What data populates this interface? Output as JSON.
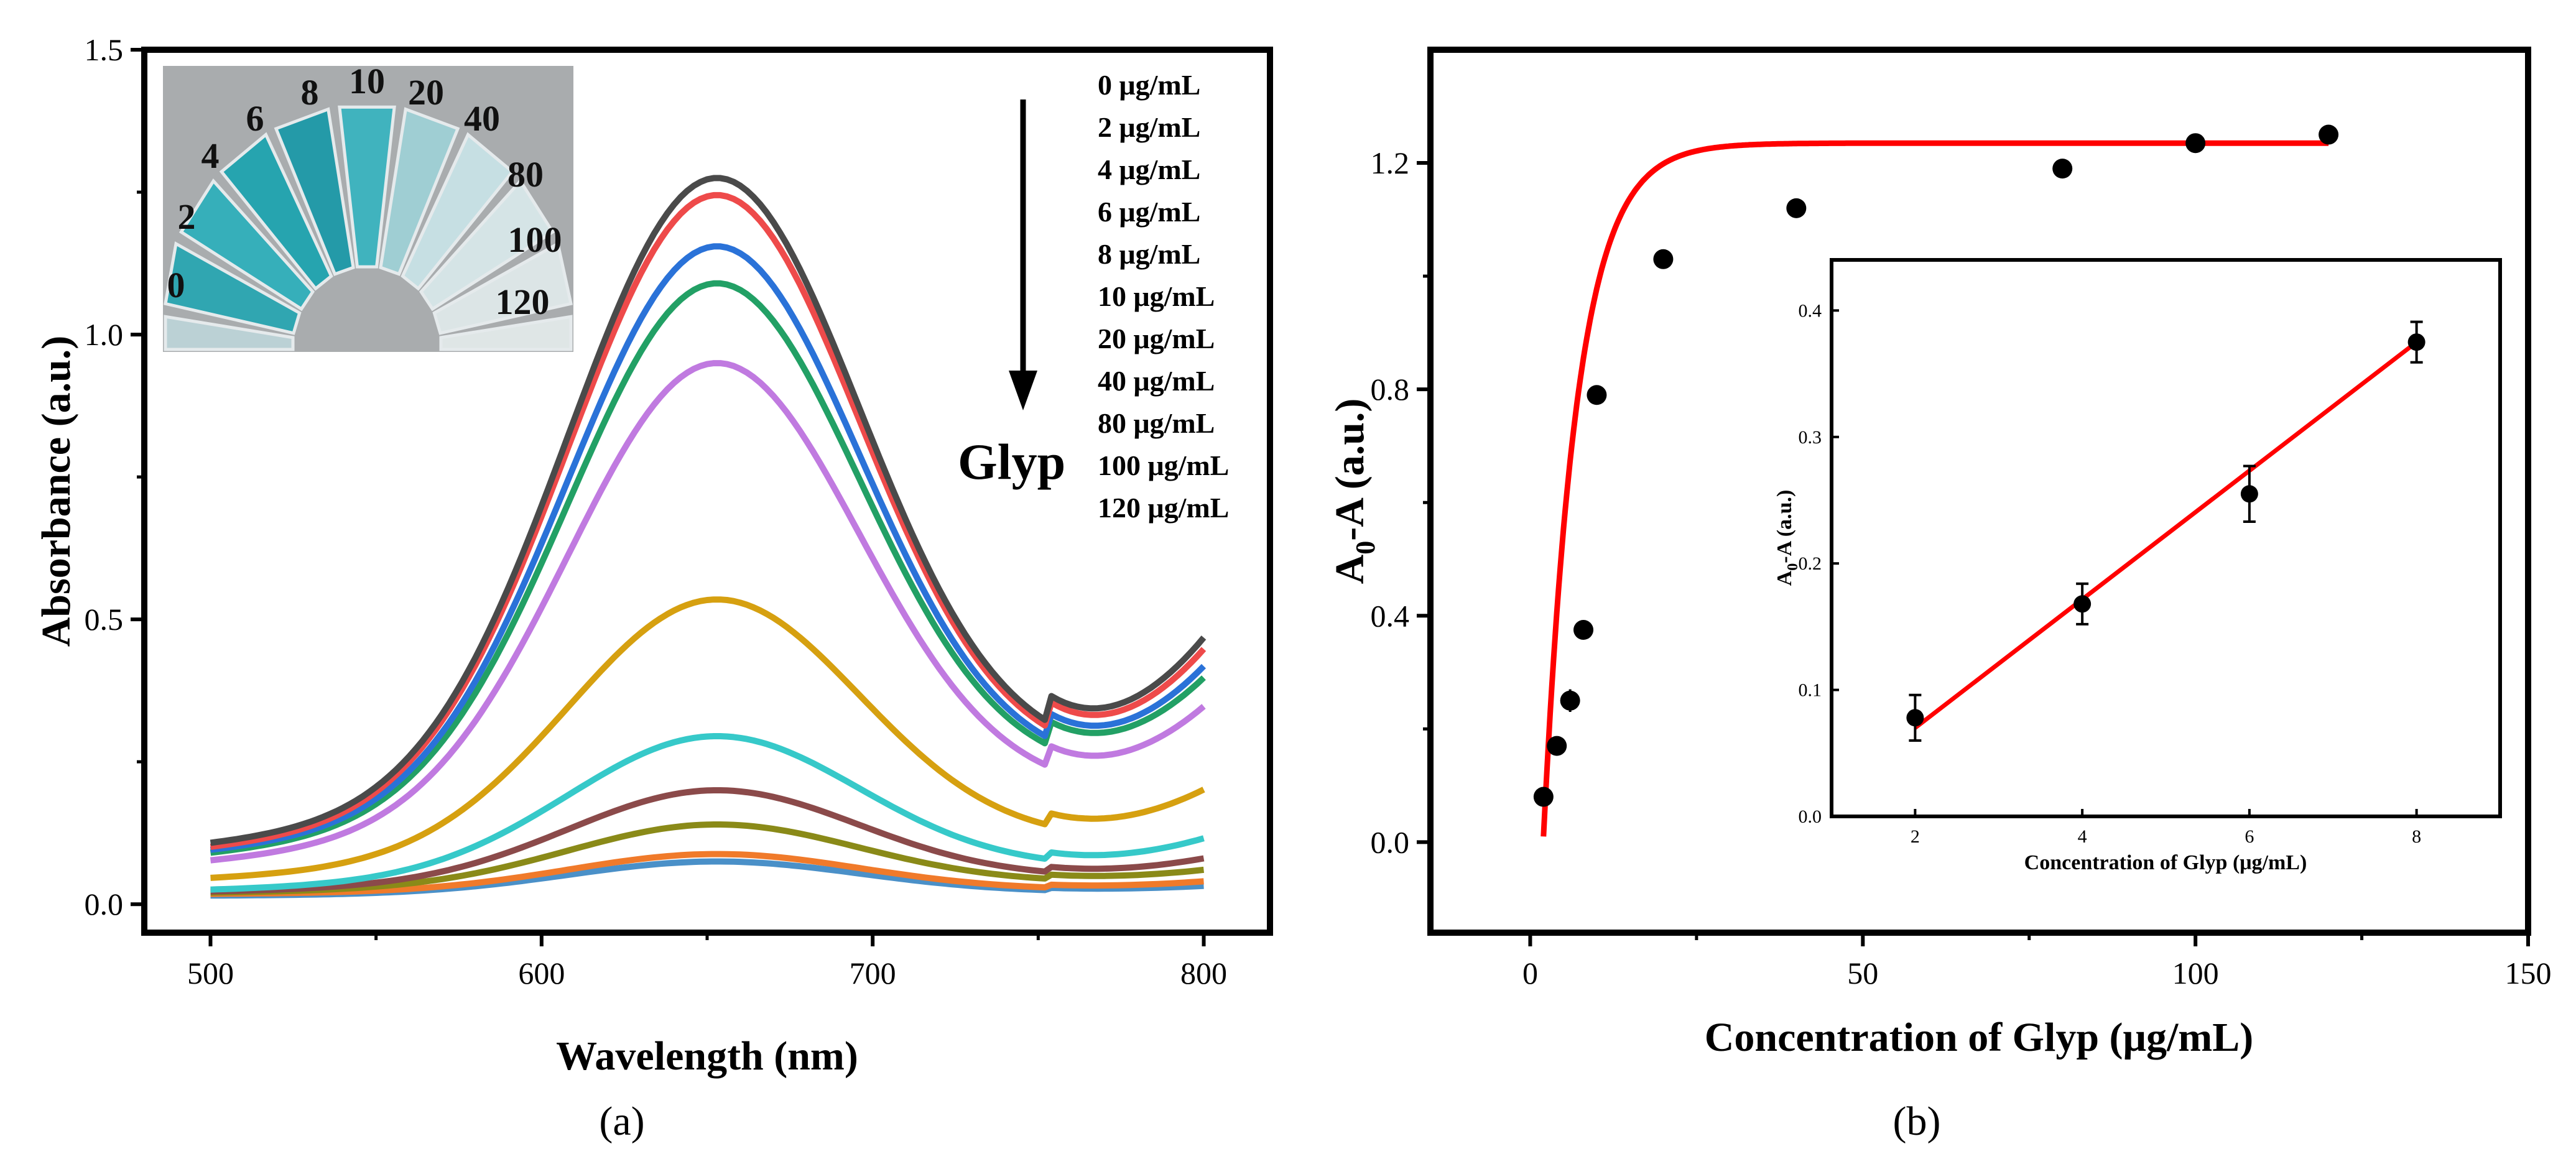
{
  "chart_data": [
    {
      "type": "line",
      "panel_label": "(a)",
      "xlabel": "Wavelength (nm)",
      "ylabel": "Absorbance (a.u.)",
      "xlim": [
        480,
        820
      ],
      "ylim": [
        -0.05,
        1.5
      ],
      "x_ticks": [
        500,
        600,
        700,
        800
      ],
      "y_ticks": [
        0.0,
        0.5,
        1.0,
        1.5
      ],
      "x_tick_labels": [
        "500",
        "600",
        "700",
        "800"
      ],
      "y_tick_labels": [
        "0.0",
        "0.5",
        "1.0",
        "1.5"
      ],
      "arrow_label": "Glyp",
      "series": [
        {
          "name": "0 μg/mL",
          "color": "#4a4a4a",
          "a500": 0.105,
          "peak": 1.275,
          "min750": 0.295,
          "a800": 0.465
        },
        {
          "name": "2 μg/mL",
          "color": "#ee4a4a",
          "a500": 0.098,
          "peak": 1.245,
          "min750": 0.285,
          "a800": 0.445
        },
        {
          "name": "4 μg/mL",
          "color": "#2a72d8",
          "a500": 0.093,
          "peak": 1.155,
          "min750": 0.27,
          "a800": 0.415
        },
        {
          "name": "6 μg/mL",
          "color": "#22a065",
          "a500": 0.088,
          "peak": 1.09,
          "min750": 0.26,
          "a800": 0.395
        },
        {
          "name": "8 μg/mL",
          "color": "#c07ae0",
          "a500": 0.075,
          "peak": 0.95,
          "min750": 0.225,
          "a800": 0.345
        },
        {
          "name": "10 μg/mL",
          "color": "#d6a010",
          "a500": 0.045,
          "peak": 0.535,
          "min750": 0.13,
          "a800": 0.2
        },
        {
          "name": "20 μg/mL",
          "color": "#36c9c9",
          "a500": 0.025,
          "peak": 0.295,
          "min750": 0.075,
          "a800": 0.115
        },
        {
          "name": "40 μg/mL",
          "color": "#8b4a4a",
          "a500": 0.022,
          "peak": 0.2,
          "min750": 0.055,
          "a800": 0.08
        },
        {
          "name": "80 μg/mL",
          "color": "#8a8a18",
          "a500": 0.02,
          "peak": 0.14,
          "min750": 0.045,
          "a800": 0.06
        },
        {
          "name": "100 μg/mL",
          "color": "#f07a2a",
          "a500": 0.018,
          "peak": 0.088,
          "min750": 0.03,
          "a800": 0.04
        },
        {
          "name": "120 μg/mL",
          "color": "#4a90c8",
          "a500": 0.015,
          "peak": 0.075,
          "min750": 0.025,
          "a800": 0.032
        }
      ],
      "inset_photo": {
        "labels": [
          "0",
          "2",
          "4",
          "6",
          "8",
          "10",
          "20",
          "40",
          "80",
          "100",
          "120"
        ],
        "tube_colors": [
          "#bcd3d8",
          "#2aa6b2",
          "#30b0bb",
          "#1fa4b0",
          "#1d9aa8",
          "#3bb4bf",
          "#9fd0d6",
          "#c8e2e6",
          "#d8e8ea",
          "#dfe9ea",
          "#e2eaea"
        ]
      }
    },
    {
      "type": "scatter",
      "panel_label": "(b)",
      "xlabel": "Concentration of Glyp (μg/mL)",
      "ylabel_main": "A",
      "ylabel_sub": "0",
      "ylabel_rest": "-A (a.u.)",
      "xlim": [
        -15,
        150
      ],
      "ylim": [
        -0.16,
        1.4
      ],
      "x_ticks": [
        0,
        50,
        100,
        150
      ],
      "y_ticks": [
        0.0,
        0.4,
        0.8,
        1.2
      ],
      "x_tick_labels": [
        "0",
        "50",
        "100",
        "150"
      ],
      "y_tick_labels": [
        "0.0",
        "0.4",
        "0.8",
        "1.2"
      ],
      "points": [
        {
          "x": 2,
          "y": 0.08,
          "err": 0.01
        },
        {
          "x": 4,
          "y": 0.17,
          "err": 0.01
        },
        {
          "x": 6,
          "y": 0.25,
          "err": 0.02
        },
        {
          "x": 8,
          "y": 0.375,
          "err": 0.012
        },
        {
          "x": 10,
          "y": 0.79,
          "err": 0.0
        },
        {
          "x": 20,
          "y": 1.03,
          "err": 0.0
        },
        {
          "x": 40,
          "y": 1.12,
          "err": 0.0
        },
        {
          "x": 80,
          "y": 1.19,
          "err": 0.0
        },
        {
          "x": 100,
          "y": 1.235,
          "err": 0.0
        },
        {
          "x": 120,
          "y": 1.25,
          "err": 0.0
        }
      ],
      "fit": {
        "color": "#ff0000",
        "x_start": 2,
        "x_end": 120,
        "a": 1.225,
        "x0": 2,
        "k": 0.195
      },
      "inset": {
        "type": "scatter",
        "xlabel": "Concentration of Glyp (μg/mL)",
        "ylabel_main": "A",
        "ylabel_sub": "0",
        "ylabel_rest": "-A (a.u.)",
        "xlim": [
          1,
          9
        ],
        "ylim": [
          0.0,
          0.44
        ],
        "x_ticks": [
          2,
          4,
          6,
          8
        ],
        "y_ticks": [
          0.0,
          0.1,
          0.2,
          0.3,
          0.4
        ],
        "x_tick_labels": [
          "2",
          "4",
          "6",
          "8"
        ],
        "y_tick_labels": [
          "0.0",
          "0.1",
          "0.2",
          "0.3",
          "0.4"
        ],
        "points": [
          {
            "x": 2,
            "y": 0.078,
            "err": 0.018
          },
          {
            "x": 4,
            "y": 0.168,
            "err": 0.016
          },
          {
            "x": 6,
            "y": 0.255,
            "err": 0.022
          },
          {
            "x": 8,
            "y": 0.375,
            "err": 0.016
          }
        ],
        "fit": {
          "color": "#ff0000",
          "x_start": 2,
          "x_end": 8,
          "y_start": 0.07,
          "y_end": 0.375
        }
      }
    }
  ]
}
